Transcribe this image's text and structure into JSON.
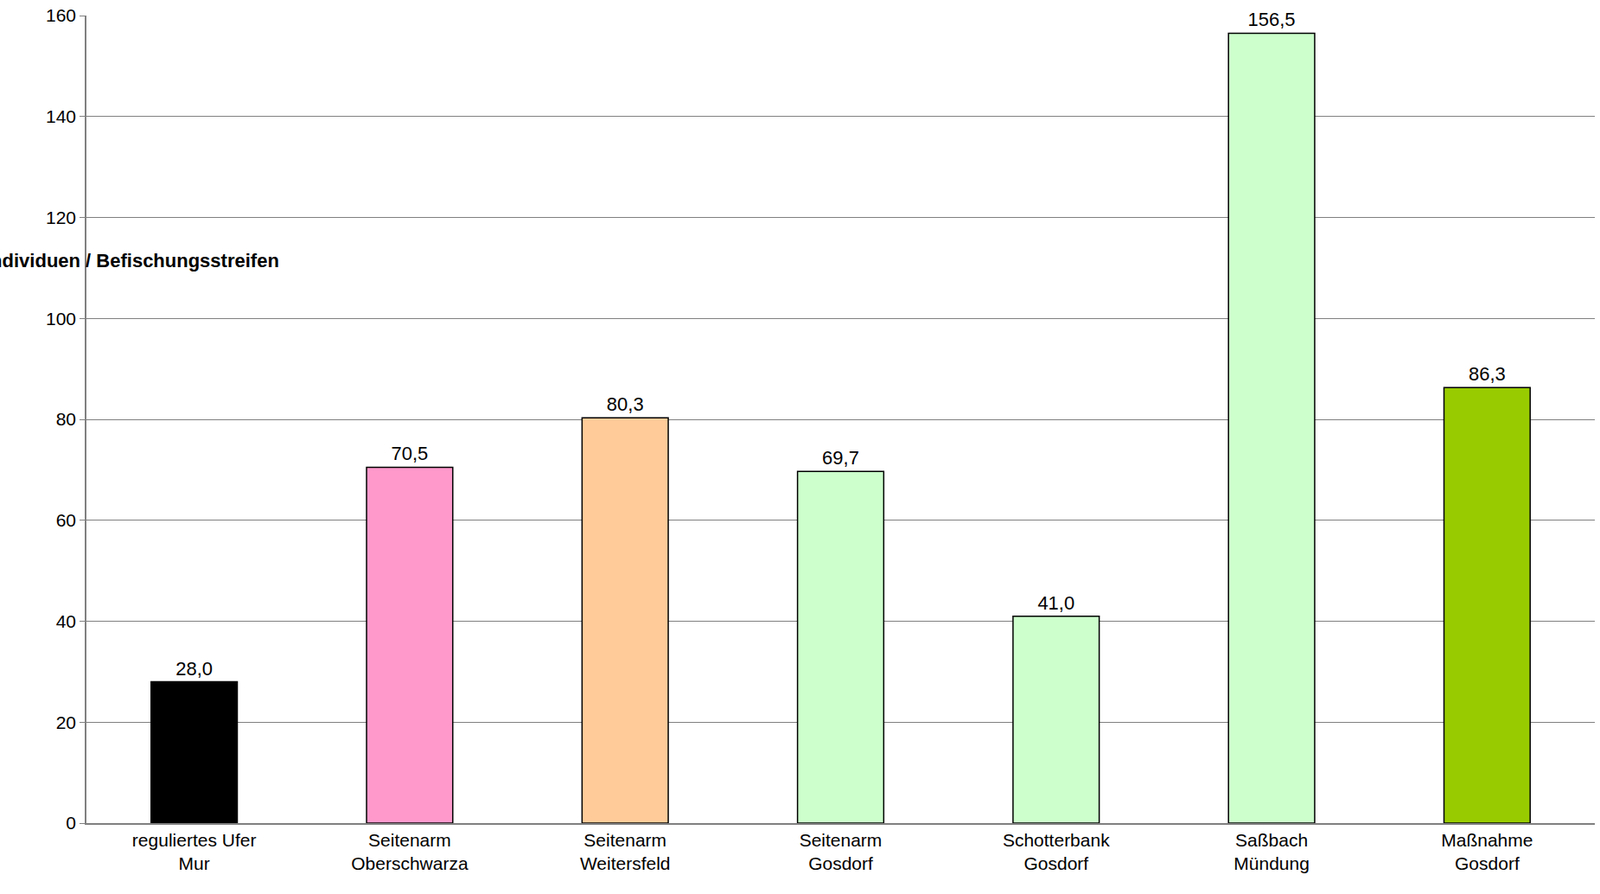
{
  "chart_data": {
    "type": "bar",
    "y_label": "Individuen / Befischungsstreifen",
    "categories": [
      "reguliertes Ufer\nMur",
      "Seitenarm\nOberschwarza",
      "Seitenarm\nWeitersfeld",
      "Seitenarm\nGosdorf",
      "Schotterbank\nGosdorf",
      "Saßbach\nMündung",
      "Maßnahme\nGosdorf"
    ],
    "values": [
      28.0,
      70.5,
      80.3,
      69.7,
      41.0,
      156.5,
      86.3
    ],
    "value_labels": [
      "28,0",
      "70,5",
      "80,3",
      "69,7",
      "41,0",
      "156,5",
      "86,3"
    ],
    "colors": [
      "#000000",
      "#ff99cc",
      "#ffcc99",
      "#ccffcc",
      "#ccffcc",
      "#ccffcc",
      "#99cc00"
    ],
    "ylim": [
      0,
      160
    ],
    "yticks": [
      0,
      20,
      40,
      60,
      80,
      100,
      120,
      140,
      160
    ],
    "grid": true,
    "data_labels": true
  }
}
